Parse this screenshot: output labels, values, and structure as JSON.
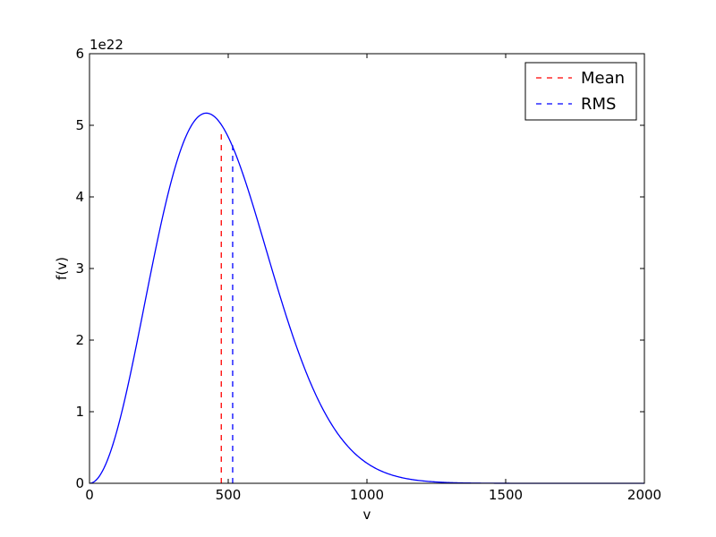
{
  "chart_data": {
    "type": "line",
    "title": "",
    "xlabel": "v",
    "ylabel": "f(v)",
    "y_offset_label": "1e22",
    "xlim": [
      0,
      2000
    ],
    "ylim": [
      0,
      6
    ],
    "y_scale_factor": 1e+22,
    "x_ticks": [
      0,
      500,
      1000,
      1500,
      2000
    ],
    "x_tick_labels": [
      "0",
      "500",
      "1000",
      "1500",
      "2000"
    ],
    "y_ticks": [
      0,
      1,
      2,
      3,
      4,
      5,
      6
    ],
    "y_tick_labels": [
      "0",
      "1",
      "2",
      "3",
      "4",
      "5",
      "6"
    ],
    "grid": false,
    "legend_position": "top-right",
    "curve": {
      "color": "#0000ff",
      "peak_x": 421,
      "peak_y": 5.17
    },
    "series": [
      {
        "name": "Mean",
        "style": "dashed",
        "color": "#ff0000",
        "x": 475,
        "y_top": 4.92
      },
      {
        "name": "RMS",
        "style": "dashed",
        "color": "#0000ff",
        "x": 516,
        "y_top": 4.72
      }
    ]
  }
}
